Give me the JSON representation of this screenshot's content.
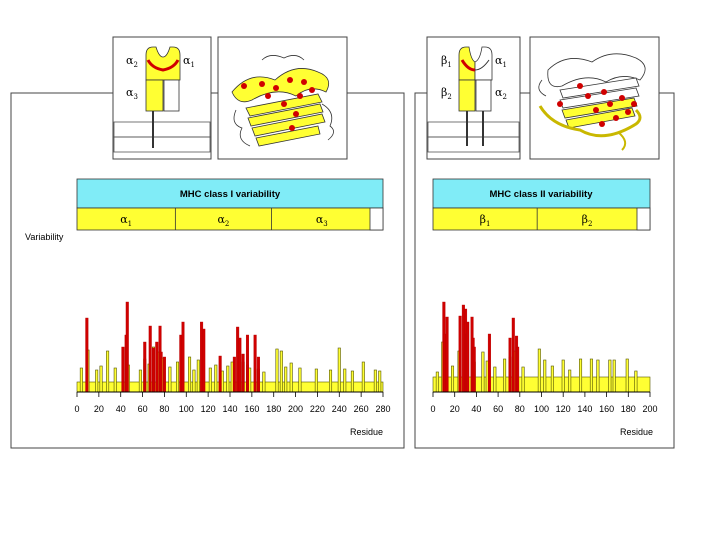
{
  "colors": {
    "yellow": "#ffff33",
    "cyan": "#80ecf7",
    "red": "#d00000",
    "dark_red": "#b80000",
    "bar_outline": "#555500"
  },
  "chart_data": [
    {
      "type": "bar",
      "title": "MHC class I variability",
      "ylabel": "Variability",
      "xlabel": "Residue",
      "xlim": [
        0,
        280
      ],
      "xticks": [
        "0",
        "20",
        "40",
        "60",
        "80",
        "100",
        "120",
        "140",
        "160",
        "180",
        "200",
        "220",
        "240",
        "260",
        "280"
      ],
      "domains": [
        {
          "name": "α",
          "sub": "1",
          "start": 0,
          "end": 90
        },
        {
          "name": "α",
          "sub": "2",
          "start": 90,
          "end": 178
        },
        {
          "name": "α",
          "sub": "3",
          "start": 178,
          "end": 270
        }
      ],
      "baseline": 1,
      "yellow_bars": [
        {
          "x": 4,
          "v": 2.4
        },
        {
          "x": 10,
          "v": 4.2
        },
        {
          "x": 18,
          "v": 2.2
        },
        {
          "x": 22,
          "v": 2.6
        },
        {
          "x": 28,
          "v": 4.1
        },
        {
          "x": 35,
          "v": 2.4
        },
        {
          "x": 47,
          "v": 2.7
        },
        {
          "x": 58,
          "v": 2.2
        },
        {
          "x": 62,
          "v": 3.3
        },
        {
          "x": 66,
          "v": 2.8
        },
        {
          "x": 70,
          "v": 4.5
        },
        {
          "x": 74,
          "v": 4.0
        },
        {
          "x": 78,
          "v": 3.4
        },
        {
          "x": 85,
          "v": 2.5
        },
        {
          "x": 92,
          "v": 3.0
        },
        {
          "x": 103,
          "v": 3.5
        },
        {
          "x": 107,
          "v": 2.2
        },
        {
          "x": 111,
          "v": 3.2
        },
        {
          "x": 122,
          "v": 2.4
        },
        {
          "x": 127,
          "v": 2.7
        },
        {
          "x": 133,
          "v": 2.1
        },
        {
          "x": 138,
          "v": 2.6
        },
        {
          "x": 142,
          "v": 3.0
        },
        {
          "x": 152,
          "v": 3.0
        },
        {
          "x": 156,
          "v": 2.7
        },
        {
          "x": 158,
          "v": 2.4
        },
        {
          "x": 166,
          "v": 2.3
        },
        {
          "x": 171,
          "v": 2.0
        },
        {
          "x": 183,
          "v": 4.3
        },
        {
          "x": 187,
          "v": 4.1
        },
        {
          "x": 191,
          "v": 2.5
        },
        {
          "x": 196,
          "v": 2.9
        },
        {
          "x": 204,
          "v": 2.4
        },
        {
          "x": 219,
          "v": 2.3
        },
        {
          "x": 232,
          "v": 2.2
        },
        {
          "x": 240,
          "v": 4.4
        },
        {
          "x": 245,
          "v": 2.3
        },
        {
          "x": 252,
          "v": 2.1
        },
        {
          "x": 262,
          "v": 3.0
        },
        {
          "x": 273,
          "v": 2.2
        },
        {
          "x": 277,
          "v": 2.1
        }
      ],
      "red_bars": [
        {
          "x": 9,
          "v": 7.4
        },
        {
          "x": 42,
          "v": 4.5
        },
        {
          "x": 45,
          "v": 5.7
        },
        {
          "x": 46,
          "v": 9.0
        },
        {
          "x": 62,
          "v": 5.0
        },
        {
          "x": 67,
          "v": 6.6
        },
        {
          "x": 70,
          "v": 4.4
        },
        {
          "x": 73,
          "v": 5.0
        },
        {
          "x": 76,
          "v": 6.6
        },
        {
          "x": 77,
          "v": 4.0
        },
        {
          "x": 80,
          "v": 3.5
        },
        {
          "x": 95,
          "v": 5.7
        },
        {
          "x": 97,
          "v": 7.0
        },
        {
          "x": 114,
          "v": 7.0
        },
        {
          "x": 116,
          "v": 6.3
        },
        {
          "x": 131,
          "v": 3.6
        },
        {
          "x": 144,
          "v": 3.5
        },
        {
          "x": 147,
          "v": 6.5
        },
        {
          "x": 149,
          "v": 5.4
        },
        {
          "x": 152,
          "v": 3.8
        },
        {
          "x": 156,
          "v": 5.7
        },
        {
          "x": 163,
          "v": 5.7
        },
        {
          "x": 166,
          "v": 3.5
        }
      ]
    },
    {
      "type": "bar",
      "title": "MHC class II variability",
      "ylabel": "",
      "xlabel": "Residue",
      "xlim": [
        0,
        200
      ],
      "xticks": [
        "0",
        "20",
        "40",
        "60",
        "80",
        "100",
        "120",
        "140",
        "160",
        "180",
        "200"
      ],
      "domains": [
        {
          "name": "β",
          "sub": "1",
          "start": 0,
          "end": 96
        },
        {
          "name": "β",
          "sub": "2",
          "start": 96,
          "end": 188
        }
      ],
      "baseline": 1.5,
      "yellow_bars": [
        {
          "x": 4,
          "v": 2.0
        },
        {
          "x": 9,
          "v": 5.0
        },
        {
          "x": 18,
          "v": 2.6
        },
        {
          "x": 24,
          "v": 4.1
        },
        {
          "x": 30,
          "v": 5.5
        },
        {
          "x": 38,
          "v": 3.0
        },
        {
          "x": 46,
          "v": 4.0
        },
        {
          "x": 50,
          "v": 3.1
        },
        {
          "x": 57,
          "v": 2.5
        },
        {
          "x": 66,
          "v": 3.3
        },
        {
          "x": 71,
          "v": 3.5
        },
        {
          "x": 76,
          "v": 4.1
        },
        {
          "x": 83,
          "v": 2.5
        },
        {
          "x": 98,
          "v": 4.3
        },
        {
          "x": 103,
          "v": 3.2
        },
        {
          "x": 110,
          "v": 2.6
        },
        {
          "x": 120,
          "v": 3.2
        },
        {
          "x": 126,
          "v": 2.2
        },
        {
          "x": 136,
          "v": 3.3
        },
        {
          "x": 146,
          "v": 3.3
        },
        {
          "x": 152,
          "v": 3.2
        },
        {
          "x": 163,
          "v": 3.2
        },
        {
          "x": 167,
          "v": 3.2
        },
        {
          "x": 179,
          "v": 3.3
        },
        {
          "x": 187,
          "v": 2.1
        }
      ],
      "red_bars": [
        {
          "x": 10,
          "v": 9.0
        },
        {
          "x": 11,
          "v": 5.8
        },
        {
          "x": 13,
          "v": 7.5
        },
        {
          "x": 25,
          "v": 7.6
        },
        {
          "x": 28,
          "v": 8.7
        },
        {
          "x": 30,
          "v": 8.3
        },
        {
          "x": 31,
          "v": 5.8
        },
        {
          "x": 32,
          "v": 7.0
        },
        {
          "x": 36,
          "v": 7.5
        },
        {
          "x": 37,
          "v": 5.4
        },
        {
          "x": 38,
          "v": 4.5
        },
        {
          "x": 52,
          "v": 5.8
        },
        {
          "x": 71,
          "v": 5.4
        },
        {
          "x": 74,
          "v": 7.4
        },
        {
          "x": 77,
          "v": 5.6
        },
        {
          "x": 78,
          "v": 4.5
        }
      ]
    }
  ],
  "diagrams": [
    {
      "label_tl": "α",
      "label_tl_sub": "2",
      "label_tr": "α",
      "label_tr_sub": "1",
      "label_bl": "α",
      "label_bl_sub": "3"
    },
    {
      "label_tl": "β",
      "label_tl_sub": "1",
      "label_tr": "α",
      "label_tr_sub": "1",
      "label_bl": "β",
      "label_bl_sub": "2",
      "label_br": "α",
      "label_br_sub": "2"
    }
  ]
}
